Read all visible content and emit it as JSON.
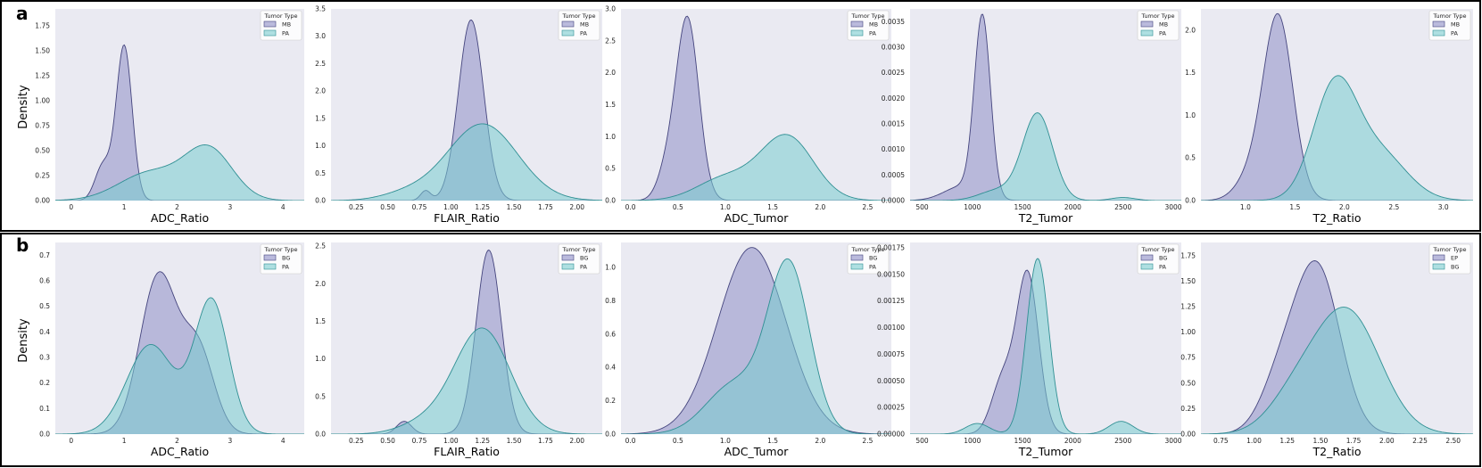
{
  "figure": {
    "ylabel": "Density",
    "legend_title": "Tumor Type",
    "colors": {
      "purple": "#8e8ec6",
      "teal": "#79cccf",
      "purple_edge": "#45457e",
      "teal_edge": "#2f8f93",
      "panel_bg": "#eaeaf2"
    }
  },
  "chart_data": [
    {
      "id": "a-adc-ratio",
      "row": "a",
      "type": "area",
      "xlabel": "ADC_Ratio",
      "xlim": [
        -0.3,
        4.4
      ],
      "ylim": [
        0,
        1.92
      ],
      "xticks": [
        0,
        1,
        2,
        3,
        4
      ],
      "xtick_labels": [
        "0",
        "1",
        "2",
        "3",
        "4"
      ],
      "yticks": [
        0,
        0.25,
        0.5,
        0.75,
        1.0,
        1.25,
        1.5,
        1.75
      ],
      "ytick_labels": [
        "0.00",
        "0.25",
        "0.50",
        "0.75",
        "1.00",
        "1.25",
        "1.50",
        "1.75"
      ],
      "series": [
        {
          "name": "MB",
          "color": "purple",
          "bumps": [
            [
              1.0,
              0.15,
              1.55
            ],
            [
              0.6,
              0.15,
              0.35
            ]
          ]
        },
        {
          "name": "PA",
          "color": "teal",
          "bumps": [
            [
              1.5,
              0.6,
              0.28
            ],
            [
              2.6,
              0.45,
              0.5
            ]
          ]
        }
      ]
    },
    {
      "id": "a-flair-ratio",
      "row": "a",
      "type": "area",
      "xlabel": "FLAIR_Ratio",
      "xlim": [
        0.05,
        2.2
      ],
      "ylim": [
        0,
        3.5
      ],
      "xticks": [
        0.25,
        0.5,
        0.75,
        1.0,
        1.25,
        1.5,
        1.75,
        2.0
      ],
      "xtick_labels": [
        "0.25",
        "0.50",
        "0.75",
        "1.00",
        "1.25",
        "1.50",
        "1.75",
        "2.00"
      ],
      "yticks": [
        0,
        0.5,
        1.0,
        1.5,
        2.0,
        2.5,
        3.0,
        3.5
      ],
      "ytick_labels": [
        "0.0",
        "0.5",
        "1.0",
        "1.5",
        "2.0",
        "2.5",
        "3.0",
        "3.5"
      ],
      "series": [
        {
          "name": "MB",
          "color": "purple",
          "bumps": [
            [
              1.16,
              0.1,
              3.3
            ],
            [
              0.8,
              0.04,
              0.18
            ]
          ]
        },
        {
          "name": "PA",
          "color": "teal",
          "bumps": [
            [
              1.25,
              0.28,
              1.4
            ],
            [
              0.65,
              0.2,
              0.12
            ]
          ]
        }
      ]
    },
    {
      "id": "a-adc-tumor",
      "row": "a",
      "type": "area",
      "xlabel": "ADC_Tumor",
      "xlim": [
        -0.1,
        2.75
      ],
      "ylim": [
        0,
        3.0
      ],
      "xticks": [
        0,
        0.5,
        1.0,
        1.5,
        2.0,
        2.5
      ],
      "xtick_labels": [
        "0.0",
        "0.5",
        "1.0",
        "1.5",
        "2.0",
        "2.5"
      ],
      "yticks": [
        0,
        0.5,
        1.0,
        1.5,
        2.0,
        2.5,
        3.0
      ],
      "ytick_labels": [
        "0.0",
        "0.5",
        "1.0",
        "1.5",
        "2.0",
        "2.5",
        "3.0"
      ],
      "series": [
        {
          "name": "MB",
          "color": "purple",
          "bumps": [
            [
              0.6,
              0.12,
              2.85
            ],
            [
              0.38,
              0.1,
              0.4
            ]
          ]
        },
        {
          "name": "PA",
          "color": "teal",
          "bumps": [
            [
              1.65,
              0.28,
              1.0
            ],
            [
              1.0,
              0.3,
              0.35
            ]
          ]
        }
      ]
    },
    {
      "id": "a-t2-tumor",
      "row": "a",
      "type": "area",
      "xlabel": "T2_Tumor",
      "xlim": [
        380,
        3080
      ],
      "ylim": [
        0,
        0.00375
      ],
      "xticks": [
        500,
        1000,
        1500,
        2000,
        2500,
        3000
      ],
      "xtick_labels": [
        "500",
        "1000",
        "1500",
        "2000",
        "2500",
        "3000"
      ],
      "yticks": [
        0,
        0.0005,
        0.001,
        0.0015,
        0.002,
        0.0025,
        0.003,
        0.0035
      ],
      "ytick_labels": [
        "0.0000",
        "0.0005",
        "0.0010",
        "0.0015",
        "0.0020",
        "0.0025",
        "0.0030",
        "0.0035"
      ],
      "series": [
        {
          "name": "MB",
          "color": "purple",
          "bumps": [
            [
              1100,
              80,
              0.0035
            ],
            [
              900,
              180,
              0.00028
            ]
          ]
        },
        {
          "name": "PA",
          "color": "teal",
          "bumps": [
            [
              1650,
              150,
              0.0017
            ],
            [
              2500,
              120,
              6e-05
            ],
            [
              1250,
              180,
              0.0002
            ]
          ]
        }
      ]
    },
    {
      "id": "a-t2-ratio",
      "row": "a",
      "type": "area",
      "xlabel": "T2_Ratio",
      "xlim": [
        0.55,
        3.3
      ],
      "ylim": [
        0,
        2.25
      ],
      "xticks": [
        1.0,
        1.5,
        2.0,
        2.5,
        3.0
      ],
      "xtick_labels": [
        "1.0",
        "1.5",
        "2.0",
        "2.5",
        "3.0"
      ],
      "yticks": [
        0,
        0.5,
        1.0,
        1.5,
        2.0
      ],
      "ytick_labels": [
        "0.0",
        "0.5",
        "1.0",
        "1.5",
        "2.0"
      ],
      "series": [
        {
          "name": "MB",
          "color": "purple",
          "bumps": [
            [
              1.33,
              0.15,
              2.15
            ],
            [
              1.05,
              0.15,
              0.25
            ]
          ]
        },
        {
          "name": "PA",
          "color": "teal",
          "bumps": [
            [
              1.9,
              0.22,
              1.3
            ],
            [
              2.35,
              0.28,
              0.55
            ]
          ]
        }
      ]
    },
    {
      "id": "b-adc-ratio",
      "row": "b",
      "type": "area",
      "xlabel": "ADC_Ratio",
      "xlim": [
        -0.3,
        4.4
      ],
      "ylim": [
        0,
        0.75
      ],
      "xticks": [
        0,
        1,
        2,
        3,
        4
      ],
      "xtick_labels": [
        "0",
        "1",
        "2",
        "3",
        "4"
      ],
      "yticks": [
        0,
        0.1,
        0.2,
        0.3,
        0.4,
        0.5,
        0.6,
        0.7
      ],
      "ytick_labels": [
        "0.0",
        "0.1",
        "0.2",
        "0.3",
        "0.4",
        "0.5",
        "0.6",
        "0.7"
      ],
      "series": [
        {
          "name": "BG",
          "color": "purple",
          "bumps": [
            [
              1.65,
              0.35,
              0.62
            ],
            [
              2.4,
              0.3,
              0.32
            ]
          ]
        },
        {
          "name": "PA",
          "color": "teal",
          "bumps": [
            [
              1.5,
              0.45,
              0.35
            ],
            [
              2.65,
              0.32,
              0.52
            ]
          ]
        }
      ]
    },
    {
      "id": "b-flair-ratio",
      "row": "b",
      "type": "area",
      "xlabel": "FLAIR_Ratio",
      "xlim": [
        0.05,
        2.2
      ],
      "ylim": [
        0,
        2.55
      ],
      "xticks": [
        0.25,
        0.5,
        0.75,
        1.0,
        1.25,
        1.5,
        1.75,
        2.0
      ],
      "xtick_labels": [
        "0.25",
        "0.50",
        "0.75",
        "1.00",
        "1.25",
        "1.50",
        "1.75",
        "2.00"
      ],
      "yticks": [
        0,
        0.5,
        1.0,
        1.5,
        2.0,
        2.5
      ],
      "ytick_labels": [
        "0.0",
        "0.5",
        "1.0",
        "1.5",
        "2.0",
        "2.5"
      ],
      "series": [
        {
          "name": "BG",
          "color": "purple",
          "bumps": [
            [
              1.3,
              0.1,
              2.45
            ],
            [
              0.63,
              0.06,
              0.17
            ]
          ]
        },
        {
          "name": "PA",
          "color": "teal",
          "bumps": [
            [
              1.25,
              0.22,
              1.4
            ],
            [
              0.8,
              0.2,
              0.15
            ]
          ]
        }
      ]
    },
    {
      "id": "b-adc-tumor",
      "row": "b",
      "type": "area",
      "xlabel": "ADC_Tumor",
      "xlim": [
        -0.1,
        2.75
      ],
      "ylim": [
        0,
        1.15
      ],
      "xticks": [
        0,
        0.5,
        1.0,
        1.5,
        2.0,
        2.5
      ],
      "xtick_labels": [
        "0.0",
        "0.5",
        "1.0",
        "1.5",
        "2.0",
        "2.5"
      ],
      "yticks": [
        0,
        0.2,
        0.4,
        0.6,
        0.8,
        1.0
      ],
      "ytick_labels": [
        "0.0",
        "0.2",
        "0.4",
        "0.6",
        "0.8",
        "1.0"
      ],
      "series": [
        {
          "name": "BG",
          "color": "purple",
          "bumps": [
            [
              1.28,
              0.36,
              1.12
            ]
          ]
        },
        {
          "name": "PA",
          "color": "teal",
          "bumps": [
            [
              1.67,
              0.22,
              1.0
            ],
            [
              1.1,
              0.3,
              0.3
            ]
          ]
        }
      ]
    },
    {
      "id": "b-t2-tumor",
      "row": "b",
      "type": "area",
      "xlabel": "T2_Tumor",
      "xlim": [
        380,
        3080
      ],
      "ylim": [
        0,
        0.0018
      ],
      "xticks": [
        500,
        1000,
        1500,
        2000,
        2500,
        3000
      ],
      "xtick_labels": [
        "500",
        "1000",
        "1500",
        "2000",
        "2500",
        "3000"
      ],
      "yticks": [
        0,
        0.00025,
        0.0005,
        0.00075,
        0.001,
        0.00125,
        0.0015,
        0.00175
      ],
      "ytick_labels": [
        "0.00000",
        "0.00025",
        "0.00050",
        "0.00075",
        "0.00100",
        "0.00125",
        "0.00150",
        "0.00175"
      ],
      "series": [
        {
          "name": "BG",
          "color": "purple",
          "bumps": [
            [
              1550,
              110,
              0.0015
            ],
            [
              1300,
              110,
              0.0005
            ]
          ]
        },
        {
          "name": "PA",
          "color": "teal",
          "bumps": [
            [
              1650,
              110,
              0.00165
            ],
            [
              2480,
              120,
              0.00012
            ],
            [
              1050,
              120,
              0.0001
            ]
          ]
        }
      ]
    },
    {
      "id": "b-t2-ratio",
      "row": "b",
      "type": "area",
      "xlabel": "T2_Ratio",
      "xlim": [
        0.6,
        2.65
      ],
      "ylim": [
        0,
        1.88
      ],
      "xticks": [
        0.75,
        1.0,
        1.25,
        1.5,
        1.75,
        2.0,
        2.25,
        2.5
      ],
      "xtick_labels": [
        "0.75",
        "1.00",
        "1.25",
        "1.50",
        "1.75",
        "2.00",
        "2.25",
        "2.50"
      ],
      "yticks": [
        0,
        0.25,
        0.5,
        0.75,
        1.0,
        1.25,
        1.5,
        1.75
      ],
      "ytick_labels": [
        "0.00",
        "0.25",
        "0.50",
        "0.75",
        "1.00",
        "1.25",
        "1.50",
        "1.75"
      ],
      "series": [
        {
          "name": "EP",
          "color": "purple",
          "bumps": [
            [
              1.48,
              0.17,
              1.6
            ],
            [
              1.2,
              0.15,
              0.5
            ]
          ]
        },
        {
          "name": "BG",
          "color": "teal",
          "bumps": [
            [
              1.7,
              0.25,
              1.2
            ],
            [
              1.3,
              0.2,
              0.3
            ]
          ]
        }
      ]
    }
  ],
  "rows": [
    {
      "label": "a"
    },
    {
      "label": "b"
    }
  ]
}
